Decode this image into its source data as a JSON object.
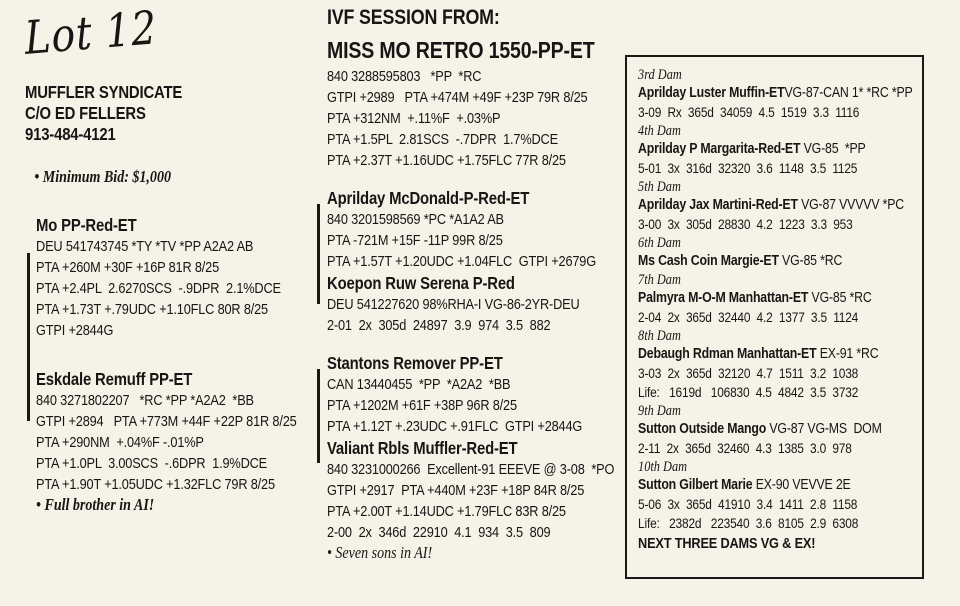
{
  "lot": {
    "script": "Lot 12"
  },
  "consignor": {
    "lines": [
      "MUFFLER SYNDICATE",
      "C/O ED FELLERS",
      "913-484-4121"
    ],
    "minimum_bid": "• Minimum Bid: $1,000"
  },
  "session": {
    "heading": "IVF SESSION FROM:",
    "donor": {
      "name": "MISS MO RETRO 1550-PP-ET",
      "lines": [
        "840 3288595803   *PP  *RC",
        "GTPI +2989   PTA +474M +49F +23P 79R 8/25",
        "PTA +312NM  +.11%F  +.03%P",
        "PTA +1.5PL  2.81SCS  -.7DPR  1.7%DCE",
        "PTA +2.37T +1.16UDC +1.75FLC 77R 8/25"
      ]
    }
  },
  "left_pedigree": {
    "blocks": [
      {
        "title": "Mo PP-Red-ET",
        "lines": [
          "DEU 541743745 *TY *TV *PP A2A2 AB",
          "PTA +260M +30F +16P 81R 8/25",
          "PTA +2.4PL  2.6270SCS  -.9DPR  2.1%DCE",
          "PTA +1.73T +.79UDC +1.10FLC 80R 8/25",
          "GTPI +2844G"
        ],
        "note": ""
      },
      {
        "title": "Eskdale Remuff PP-ET",
        "lines": [
          "840 3271802207   *RC *PP *A2A2  *BB",
          "GTPI +2894   PTA +773M +44F +22P 81R 8/25",
          "PTA +290NM  +.04%F -.01%P",
          "PTA +1.0PL  3.00SCS  -.6DPR  1.9%DCE",
          "PTA +1.90T +1.05UDC +1.32FLC 79R 8/25"
        ],
        "note": "• Full brother in AI!"
      }
    ]
  },
  "sire_groups": [
    {
      "animals": [
        {
          "title": "Aprilday McDonald-P-Red-ET",
          "lines": [
            "840 3201598569 *PC *A1A2 AB",
            "PTA -721M +15F -11P 99R 8/25",
            "PTA +1.57T +1.20UDC +1.04FLC  GTPI +2679G"
          ]
        },
        {
          "title": "Koepon Ruw Serena P-Red",
          "lines": [
            "DEU 541227620 98%RHA-I VG-86-2YR-DEU",
            "2-01  2x  305d  24897  3.9  974  3.5  882"
          ]
        }
      ],
      "note": ""
    },
    {
      "animals": [
        {
          "title": "Stantons Remover PP-ET",
          "lines": [
            "CAN 13440455  *PP  *A2A2  *BB",
            "PTA +1202M +61F +38P 96R 8/25",
            "PTA +1.12T +.23UDC +.91FLC  GTPI +2844G"
          ]
        },
        {
          "title": "Valiant Rbls Muffler-Red-ET",
          "lines": [
            "840 3231000266  Excellent-91 EEEVE @ 3-08  *PO",
            "GTPI +2917  PTA +440M +23F +18P 84R 8/25",
            "PTA +2.00T +1.14UDC +1.79FLC 83R 8/25",
            "2-00  2x  346d  22910  4.1  934  3.5  809"
          ]
        }
      ],
      "note": "• Seven sons in AI!"
    }
  ],
  "dam_box": {
    "entries": [
      {
        "label": "3rd Dam",
        "name": "Aprilday Luster Muffin-ET",
        "suffix": "VG-87-CAN 1* *RC *PP",
        "records": [
          "3-09  Rx  365d  34059  4.5  1519  3.3  1116"
        ]
      },
      {
        "label": "4th Dam",
        "name": "Aprilday P Margarita-Red-ET",
        "suffix": " VG-85  *PP",
        "records": [
          "5-01  3x  316d  32320  3.6  1148  3.5  1125"
        ]
      },
      {
        "label": "5th Dam",
        "name": "Aprilday Jax Martini-Red-ET",
        "suffix": " VG-87 VVVVV *PC",
        "records": [
          "3-00  3x  305d  28830  4.2  1223  3.3  953"
        ]
      },
      {
        "label": "6th Dam",
        "name": "Ms Cash Coin Margie-ET",
        "suffix": " VG-85 *RC",
        "records": []
      },
      {
        "label": "7th Dam",
        "name": "Palmyra M-O-M Manhattan-ET",
        "suffix": " VG-85 *RC",
        "records": [
          "2-04  2x  365d  32440  4.2  1377  3.5  1124"
        ]
      },
      {
        "label": "8th Dam",
        "name": "Debaugh Rdman Manhattan-ET",
        "suffix": " EX-91 *RC",
        "records": [
          "3-03  2x  365d  32120  4.7  1511  3.2  1038",
          "Life:   1619d   106830  4.5  4842  3.5  3732"
        ]
      },
      {
        "label": "9th Dam",
        "name": "Sutton Outside Mango",
        "suffix": " VG-87 VG-MS  DOM",
        "records": [
          "2-11  2x  365d  32460  4.3  1385  3.0  978"
        ]
      },
      {
        "label": "10th Dam",
        "name": "Sutton Gilbert Marie",
        "suffix": " EX-90 VEVVE 2E",
        "records": [
          "5-06  3x  365d  41910  3.4  1411  2.8  1158",
          "Life:   2382d   223540  3.6  8105  2.9  6308"
        ]
      }
    ],
    "footer": "NEXT THREE DAMS VG & EX!"
  }
}
